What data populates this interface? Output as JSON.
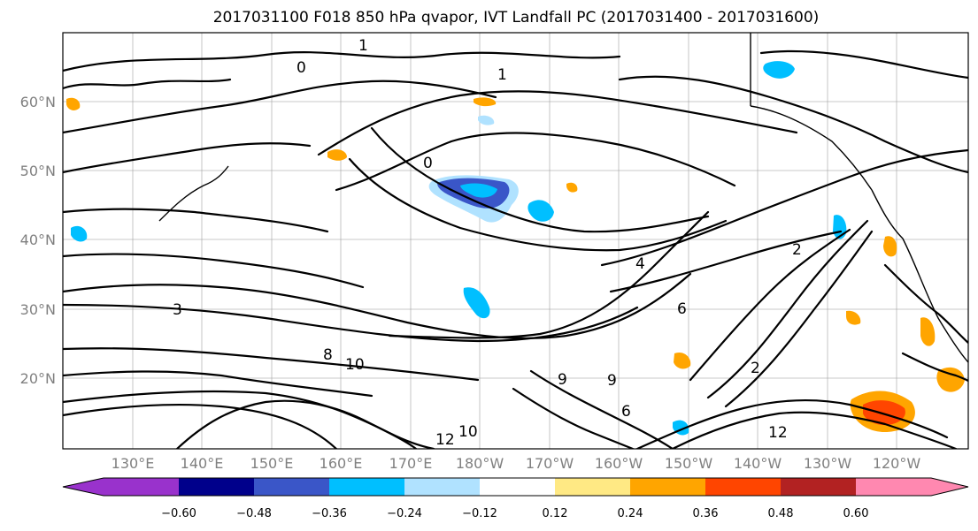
{
  "title": "2017031100 F018 850 hPa qvapor, IVT Landfall PC (2017031400 - 2017031600)",
  "lat_labels": [
    "60°N",
    "50°N",
    "40°N",
    "30°N",
    "20°N"
  ],
  "lon_labels": [
    "130°E",
    "140°E",
    "150°E",
    "160°E",
    "170°E",
    "180°W",
    "170°W",
    "160°W",
    "150°W",
    "140°W",
    "130°W",
    "120°W"
  ],
  "contour_labels": [
    "1",
    "0",
    "1",
    "0",
    "2",
    "4",
    "6",
    "8",
    "10",
    "12",
    "9",
    "3",
    "12",
    "10",
    "6",
    "2",
    "9"
  ],
  "colorbar": {
    "ticks": [
      "−0.60",
      "−0.48",
      "−0.36",
      "−0.24",
      "−0.12",
      "0.12",
      "0.24",
      "0.36",
      "0.48",
      "0.60"
    ],
    "colors": [
      "#9932CC",
      "#00008B",
      "#3A56C8",
      "#00BFFF",
      "#B0E2FF",
      "#FFFFFF",
      "#FFE984",
      "#FFA500",
      "#FF4500",
      "#B22222",
      "#FF88B0"
    ]
  }
}
